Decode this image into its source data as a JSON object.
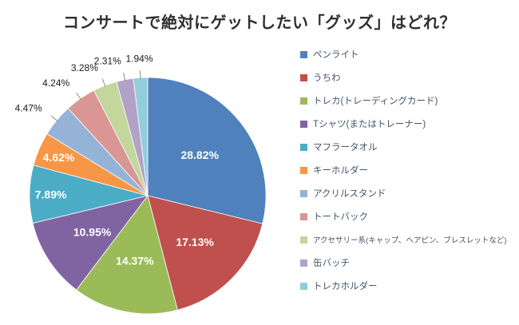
{
  "chart_data": {
    "type": "pie",
    "title": "コンサートで絶対にゲットしたい「グッズ」はどれ？",
    "unit": "%",
    "legend_position": "right",
    "start_angle_deg": 0,
    "direction": "clockwise",
    "background_color": "#ffffff",
    "slices": [
      {
        "label": "ペンライト",
        "value": 28.82,
        "display": "28.82%",
        "color": "#4F81BD",
        "label_placement": "inside"
      },
      {
        "label": "うちわ",
        "value": 17.13,
        "display": "17.13%",
        "color": "#C0504D",
        "label_placement": "inside"
      },
      {
        "label": "トレカ(トレーディングカード)",
        "value": 14.37,
        "display": "14.37%",
        "color": "#9BBB59",
        "label_placement": "inside"
      },
      {
        "label": "Tシャツ(またはトレーナー)",
        "value": 10.95,
        "display": "10.95%",
        "color": "#8064A2",
        "label_placement": "inside"
      },
      {
        "label": "マフラータオル",
        "value": 7.89,
        "display": "7.89%",
        "color": "#4BACC6",
        "label_placement": "inside"
      },
      {
        "label": "キーホルダー",
        "value": 4.62,
        "display": "4.62%",
        "color": "#F79646",
        "label_placement": "inside"
      },
      {
        "label": "アクリルスタンド",
        "value": 4.47,
        "display": "4.47%",
        "color": "#95B3D7",
        "label_placement": "outside"
      },
      {
        "label": "トートバック",
        "value": 4.24,
        "display": "4.24%",
        "color": "#D99694",
        "label_placement": "outside"
      },
      {
        "label": "アクセサリー系(キャップ、ヘアピン、ブレスレットなど)",
        "value": 3.28,
        "display": "3.28%",
        "color": "#C3D69B",
        "label_placement": "outside"
      },
      {
        "label": "缶バッチ",
        "value": 2.31,
        "display": "2.31%",
        "color": "#B3A2C7",
        "label_placement": "outside"
      },
      {
        "label": "トレカホルダー",
        "value": 1.94,
        "display": "1.94%",
        "color": "#92CDDC",
        "label_placement": "outside"
      }
    ]
  }
}
